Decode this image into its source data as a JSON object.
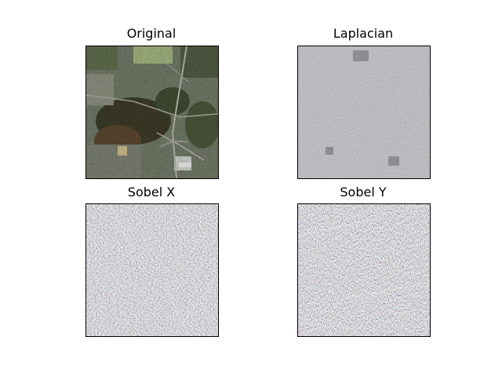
{
  "figure": {
    "panels": [
      {
        "title": "Original",
        "image_kind": "aerial-photo"
      },
      {
        "title": "Laplacian",
        "image_kind": "laplacian-edge-map"
      },
      {
        "title": "Sobel X",
        "image_kind": "sobel-x-edge-map"
      },
      {
        "title": "Sobel Y",
        "image_kind": "sobel-y-edge-map"
      }
    ]
  }
}
